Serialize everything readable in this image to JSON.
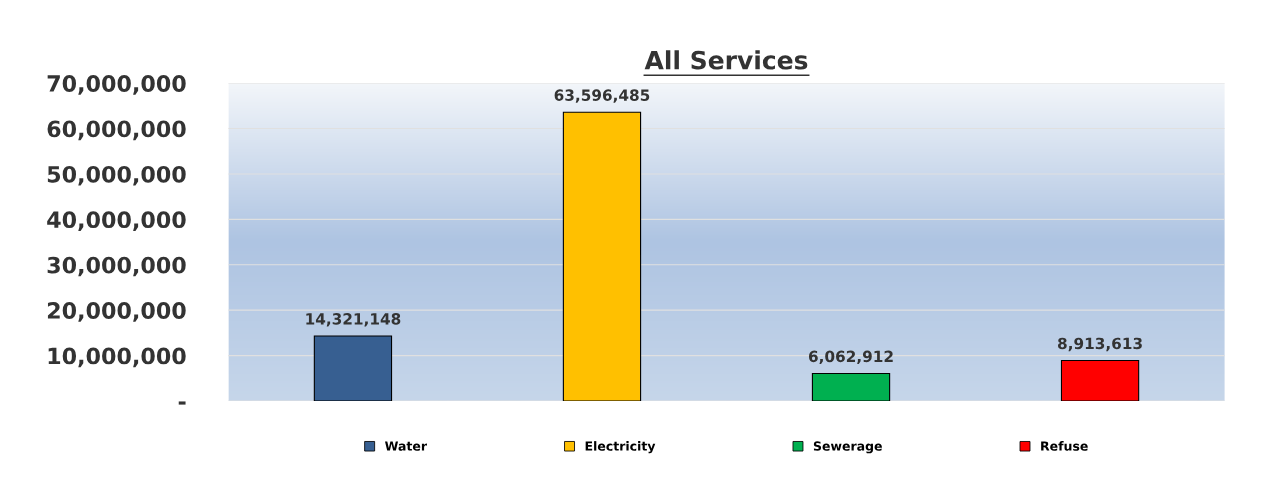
{
  "chart_data": {
    "type": "bar",
    "title": "All Services",
    "categories": [
      null,
      null,
      null,
      null
    ],
    "series": [
      {
        "name": "Water",
        "color": "#375f91",
        "values": [
          14321148,
          null,
          null,
          null
        ],
        "value_labels": [
          "14,321,148",
          null,
          null,
          null
        ]
      },
      {
        "name": "Electricity",
        "color": "#ffc000",
        "values": [
          null,
          63596485,
          null,
          null
        ],
        "value_labels": [
          null,
          "63,596,485",
          null,
          null
        ]
      },
      {
        "name": "Sewerage",
        "color": "#00b050",
        "values": [
          null,
          null,
          6062912,
          null
        ],
        "value_labels": [
          null,
          null,
          "6,062,912",
          null
        ]
      },
      {
        "name": "Refuse",
        "color": "#ff0000",
        "values": [
          null,
          null,
          null,
          8913613
        ],
        "value_labels": [
          null,
          null,
          null,
          "8,913,613"
        ]
      }
    ],
    "ylim": [
      0,
      70000000
    ],
    "yticks": [
      {
        "value": 0,
        "label": "-"
      },
      {
        "value": 10000000,
        "label": "10,000,000"
      },
      {
        "value": 20000000,
        "label": "20,000,000"
      },
      {
        "value": 30000000,
        "label": "30,000,000"
      },
      {
        "value": 40000000,
        "label": "40,000,000"
      },
      {
        "value": 50000000,
        "label": "50,000,000"
      },
      {
        "value": 60000000,
        "label": "60,000,000"
      },
      {
        "value": 70000000,
        "label": "70,000,000"
      }
    ],
    "grid": "y",
    "legend": "bottom"
  }
}
